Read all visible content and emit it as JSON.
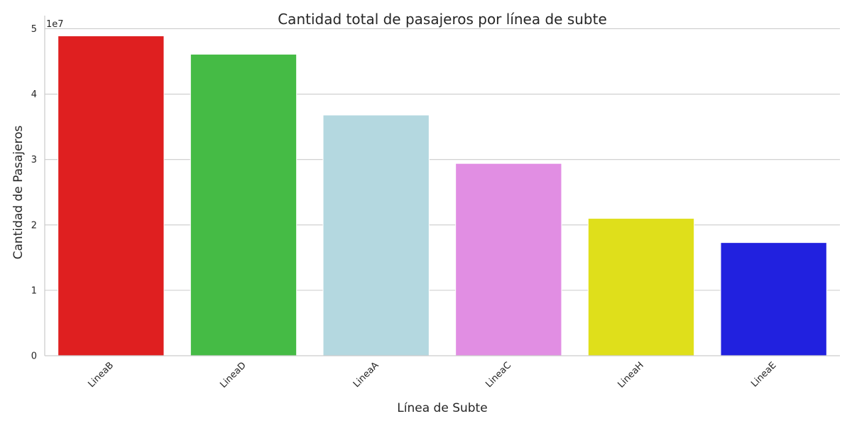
{
  "chart_data": {
    "type": "bar",
    "title": "Cantidad total de pasajeros por línea de subte",
    "xlabel": "Línea de Subte",
    "ylabel": "Cantidad de Pasajeros",
    "y_offset_label": "1e7",
    "categories": [
      "LineaB",
      "LineaD",
      "LineaA",
      "LineaC",
      "LineaH",
      "LineaE"
    ],
    "values": [
      48900000,
      46100000,
      36800000,
      29400000,
      21000000,
      17300000
    ],
    "colors": [
      "#df1f20",
      "#45bb45",
      "#b4d8e0",
      "#e18ee3",
      "#dfdf1b",
      "#2121df"
    ],
    "ylim": [
      0,
      52000000
    ],
    "yticks": [
      0,
      10000000,
      20000000,
      30000000,
      40000000,
      50000000
    ],
    "ytick_labels": [
      "0",
      "1",
      "2",
      "3",
      "4",
      "5"
    ],
    "xtick_rotation_deg": 45,
    "grid": "horizontal",
    "legend": "none"
  }
}
